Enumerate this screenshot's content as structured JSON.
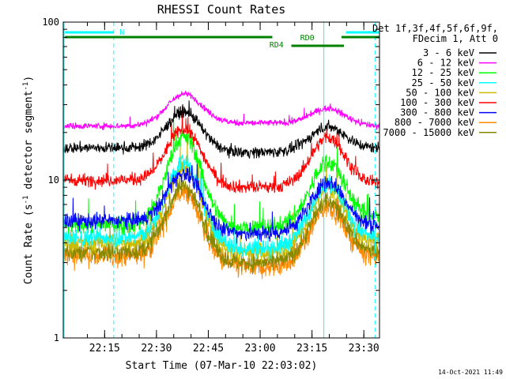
{
  "chart_data": {
    "type": "line",
    "title": "RHESSI Count Rates",
    "xlabel": "Start Time (07-Mar-10 22:03:02)",
    "ylabel_main": "Count Rate (s",
    "ylabel_sup1": "-1",
    "ylabel_mid": " detector segment",
    "ylabel_sup2": "-1",
    "ylabel_end": ")",
    "yscale": "log",
    "ylim": [
      1,
      100
    ],
    "xlim_minutes": [
      0,
      91.5
    ],
    "xticks": [
      {
        "label": "22:15",
        "minute": 11.97
      },
      {
        "label": "22:30",
        "minute": 26.97
      },
      {
        "label": "22:45",
        "minute": 41.97
      },
      {
        "label": "23:00",
        "minute": 56.97
      },
      {
        "label": "23:15",
        "minute": 71.97
      },
      {
        "label": "23:30",
        "minute": 86.97
      }
    ],
    "yticks": [
      {
        "label": "1",
        "value": 1
      },
      {
        "label": "10",
        "value": 10
      },
      {
        "label": "100",
        "value": 100
      }
    ],
    "legend_header": [
      "Det 1f,3f,4f,5f,6f,9f,",
      "FDecim 1, Att 0"
    ],
    "legend_position": "right",
    "series": [
      {
        "name": "3 - 6 keV",
        "color": "#000000",
        "base": 16,
        "peak1": 27,
        "mid": 15,
        "peak2": 21,
        "end": 16,
        "noise": 0.035
      },
      {
        "name": "6 - 12 keV",
        "color": "#ff00ff",
        "base": 22,
        "peak1": 35,
        "mid": 23,
        "peak2": 29,
        "end": 22,
        "noise": 0.02
      },
      {
        "name": "12 - 25 keV",
        "color": "#00ff00",
        "base": 5.2,
        "peak1": 19,
        "mid": 5.0,
        "peak2": 12,
        "end": 5.8,
        "noise": 0.06
      },
      {
        "name": "25 - 50 keV",
        "color": "#00ffff",
        "base": 4.3,
        "peak1": 13,
        "mid": 3.7,
        "peak2": 8.8,
        "end": 4.3,
        "noise": 0.06
      },
      {
        "name": "50 - 100 keV",
        "color": "#ccbb00",
        "base": 4.0,
        "peak1": 12,
        "mid": 3.5,
        "peak2": 8.3,
        "end": 4.0,
        "noise": 0.06
      },
      {
        "name": "100 - 300 keV",
        "color": "#ff0000",
        "base": 10,
        "peak1": 21,
        "mid": 9,
        "peak2": 18,
        "end": 9.5,
        "noise": 0.04
      },
      {
        "name": "300 - 800 keV",
        "color": "#0000ff",
        "base": 5.5,
        "peak1": 11,
        "mid": 4.6,
        "peak2": 9.2,
        "end": 5.1,
        "noise": 0.05
      },
      {
        "name": "800 - 7000 keV",
        "color": "#ff8800",
        "base": 3.3,
        "peak1": 8.4,
        "mid": 2.8,
        "peak2": 6.2,
        "end": 3.3,
        "noise": 0.07
      },
      {
        "name": "7000 - 15000 keV",
        "color": "#888800",
        "base": 3.5,
        "peak1": 9.2,
        "mid": 3.0,
        "peak2": 6.8,
        "end": 3.5,
        "noise": 0.06
      }
    ],
    "annotations": {
      "N": "N",
      "RD0": "RD0",
      "RD4": "RD4",
      "timestamp": "14-Oct-2021 11:49"
    }
  },
  "colors": {
    "frame": "#000000",
    "night_band": "#00ffff",
    "rd_band": "#008000",
    "vline": "#00ffff"
  }
}
